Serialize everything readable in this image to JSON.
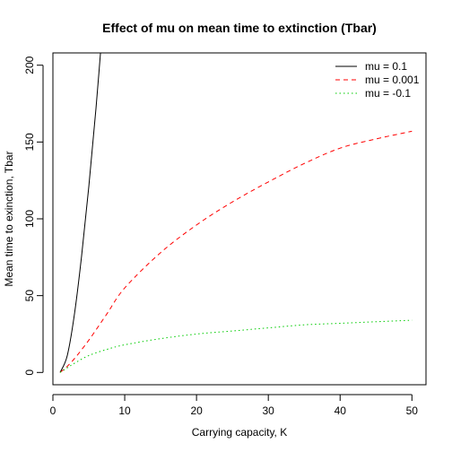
{
  "chart_data": {
    "type": "line",
    "title": "Effect of mu on mean time to extinction (Tbar)",
    "xlabel": "Carrying capacity, K",
    "ylabel": "Mean time to exinction, Tbar",
    "xlim": [
      0,
      51.96
    ],
    "ylim": [
      -8.0,
      208.0
    ],
    "x_ticks": [
      0,
      10,
      20,
      30,
      40,
      50
    ],
    "y_ticks": [
      0,
      50,
      100,
      150,
      200
    ],
    "grid": false,
    "legend_position": "top-right",
    "series": [
      {
        "name": "mu = 0.1",
        "color": "#000000",
        "line_style": "solid",
        "x": [
          1,
          2,
          3,
          4,
          5,
          6,
          7
        ],
        "y": [
          0,
          11,
          38,
          76,
          121,
          172,
          230
        ]
      },
      {
        "name": "mu = 0.001",
        "color": "#ff0000",
        "line_style": "dashed",
        "x": [
          1,
          2,
          3,
          5,
          7.5,
          10,
          15,
          20,
          25,
          30,
          35,
          40,
          45,
          50
        ],
        "y": [
          0,
          4,
          9,
          21,
          38,
          55,
          78,
          96,
          111,
          124,
          136,
          146,
          152,
          157
        ]
      },
      {
        "name": "mu = -0.1",
        "color": "#00cc00",
        "line_style": "dotted",
        "x": [
          1,
          2,
          3,
          5,
          7.5,
          10,
          15,
          20,
          25,
          30,
          35,
          40,
          45,
          50
        ],
        "y": [
          0,
          3,
          6,
          11,
          15,
          18,
          22,
          25,
          27,
          29,
          31,
          32,
          33,
          34
        ]
      }
    ]
  }
}
